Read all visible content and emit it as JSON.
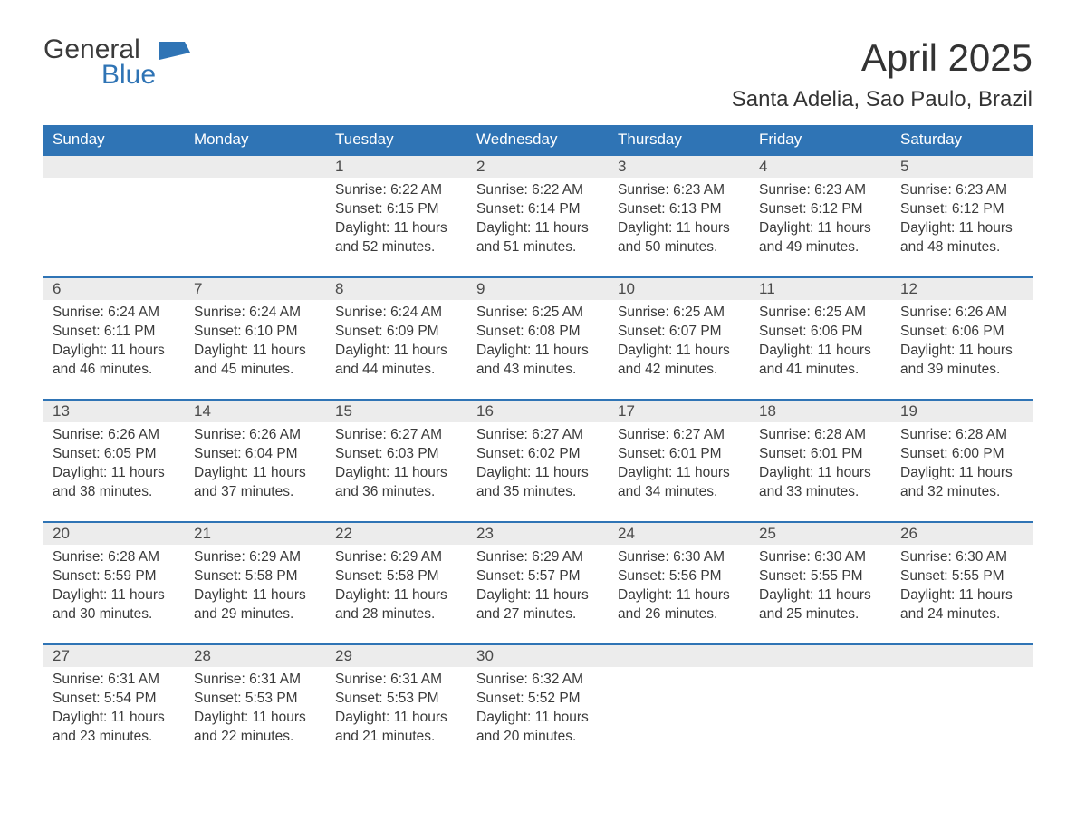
{
  "logo": {
    "general": "General",
    "blue": "Blue"
  },
  "title": "April 2025",
  "location": "Santa Adelia, Sao Paulo, Brazil",
  "colors": {
    "header_bg": "#2f74b5",
    "header_text": "#ffffff",
    "daynum_bg": "#ececec",
    "row_border": "#2f74b5",
    "body_text": "#3a3a3a",
    "page_bg": "#ffffff"
  },
  "weekdays": [
    "Sunday",
    "Monday",
    "Tuesday",
    "Wednesday",
    "Thursday",
    "Friday",
    "Saturday"
  ],
  "labels": {
    "sunrise": "Sunrise:",
    "sunset": "Sunset:",
    "daylight": "Daylight:"
  },
  "weeks": [
    [
      null,
      null,
      {
        "n": "1",
        "sunrise": "6:22 AM",
        "sunset": "6:15 PM",
        "daylight": "11 hours and 52 minutes."
      },
      {
        "n": "2",
        "sunrise": "6:22 AM",
        "sunset": "6:14 PM",
        "daylight": "11 hours and 51 minutes."
      },
      {
        "n": "3",
        "sunrise": "6:23 AM",
        "sunset": "6:13 PM",
        "daylight": "11 hours and 50 minutes."
      },
      {
        "n": "4",
        "sunrise": "6:23 AM",
        "sunset": "6:12 PM",
        "daylight": "11 hours and 49 minutes."
      },
      {
        "n": "5",
        "sunrise": "6:23 AM",
        "sunset": "6:12 PM",
        "daylight": "11 hours and 48 minutes."
      }
    ],
    [
      {
        "n": "6",
        "sunrise": "6:24 AM",
        "sunset": "6:11 PM",
        "daylight": "11 hours and 46 minutes."
      },
      {
        "n": "7",
        "sunrise": "6:24 AM",
        "sunset": "6:10 PM",
        "daylight": "11 hours and 45 minutes."
      },
      {
        "n": "8",
        "sunrise": "6:24 AM",
        "sunset": "6:09 PM",
        "daylight": "11 hours and 44 minutes."
      },
      {
        "n": "9",
        "sunrise": "6:25 AM",
        "sunset": "6:08 PM",
        "daylight": "11 hours and 43 minutes."
      },
      {
        "n": "10",
        "sunrise": "6:25 AM",
        "sunset": "6:07 PM",
        "daylight": "11 hours and 42 minutes."
      },
      {
        "n": "11",
        "sunrise": "6:25 AM",
        "sunset": "6:06 PM",
        "daylight": "11 hours and 41 minutes."
      },
      {
        "n": "12",
        "sunrise": "6:26 AM",
        "sunset": "6:06 PM",
        "daylight": "11 hours and 39 minutes."
      }
    ],
    [
      {
        "n": "13",
        "sunrise": "6:26 AM",
        "sunset": "6:05 PM",
        "daylight": "11 hours and 38 minutes."
      },
      {
        "n": "14",
        "sunrise": "6:26 AM",
        "sunset": "6:04 PM",
        "daylight": "11 hours and 37 minutes."
      },
      {
        "n": "15",
        "sunrise": "6:27 AM",
        "sunset": "6:03 PM",
        "daylight": "11 hours and 36 minutes."
      },
      {
        "n": "16",
        "sunrise": "6:27 AM",
        "sunset": "6:02 PM",
        "daylight": "11 hours and 35 minutes."
      },
      {
        "n": "17",
        "sunrise": "6:27 AM",
        "sunset": "6:01 PM",
        "daylight": "11 hours and 34 minutes."
      },
      {
        "n": "18",
        "sunrise": "6:28 AM",
        "sunset": "6:01 PM",
        "daylight": "11 hours and 33 minutes."
      },
      {
        "n": "19",
        "sunrise": "6:28 AM",
        "sunset": "6:00 PM",
        "daylight": "11 hours and 32 minutes."
      }
    ],
    [
      {
        "n": "20",
        "sunrise": "6:28 AM",
        "sunset": "5:59 PM",
        "daylight": "11 hours and 30 minutes."
      },
      {
        "n": "21",
        "sunrise": "6:29 AM",
        "sunset": "5:58 PM",
        "daylight": "11 hours and 29 minutes."
      },
      {
        "n": "22",
        "sunrise": "6:29 AM",
        "sunset": "5:58 PM",
        "daylight": "11 hours and 28 minutes."
      },
      {
        "n": "23",
        "sunrise": "6:29 AM",
        "sunset": "5:57 PM",
        "daylight": "11 hours and 27 minutes."
      },
      {
        "n": "24",
        "sunrise": "6:30 AM",
        "sunset": "5:56 PM",
        "daylight": "11 hours and 26 minutes."
      },
      {
        "n": "25",
        "sunrise": "6:30 AM",
        "sunset": "5:55 PM",
        "daylight": "11 hours and 25 minutes."
      },
      {
        "n": "26",
        "sunrise": "6:30 AM",
        "sunset": "5:55 PM",
        "daylight": "11 hours and 24 minutes."
      }
    ],
    [
      {
        "n": "27",
        "sunrise": "6:31 AM",
        "sunset": "5:54 PM",
        "daylight": "11 hours and 23 minutes."
      },
      {
        "n": "28",
        "sunrise": "6:31 AM",
        "sunset": "5:53 PM",
        "daylight": "11 hours and 22 minutes."
      },
      {
        "n": "29",
        "sunrise": "6:31 AM",
        "sunset": "5:53 PM",
        "daylight": "11 hours and 21 minutes."
      },
      {
        "n": "30",
        "sunrise": "6:32 AM",
        "sunset": "5:52 PM",
        "daylight": "11 hours and 20 minutes."
      },
      null,
      null,
      null
    ]
  ]
}
